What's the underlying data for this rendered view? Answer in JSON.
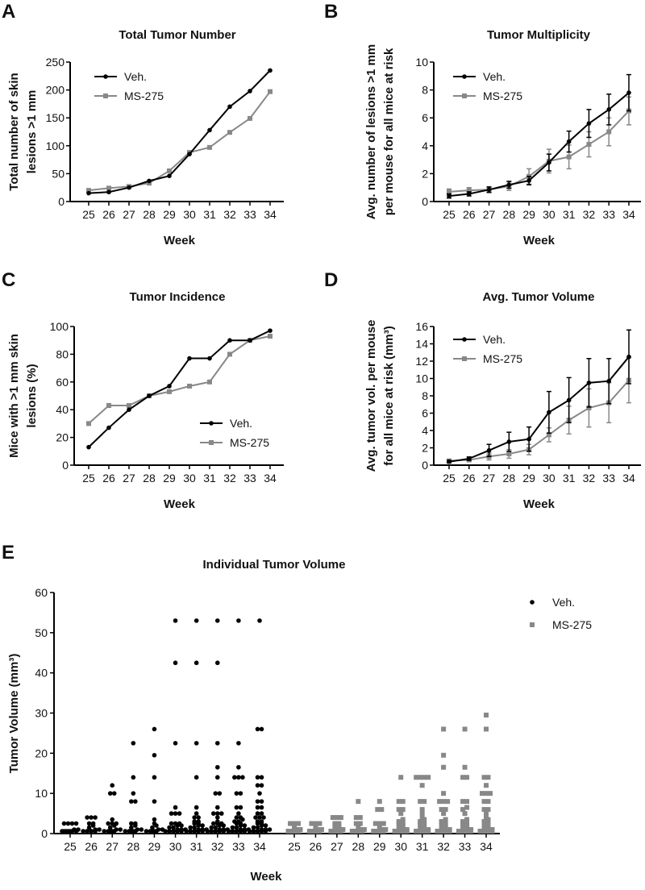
{
  "colors": {
    "veh": "#000000",
    "ms": "#888888"
  },
  "legend": {
    "veh": "Veh.",
    "ms": "MS-275"
  },
  "chart_data": [
    {
      "panel": "A",
      "type": "line",
      "title": "Total Tumor Number",
      "xlabel": "Week",
      "ylabel": [
        "Total number of skin",
        "lesions >1 mm"
      ],
      "categories": [
        25,
        26,
        27,
        28,
        29,
        30,
        31,
        32,
        33,
        34
      ],
      "ylim": [
        0,
        250
      ],
      "yticks": [
        0,
        50,
        100,
        150,
        200,
        250
      ],
      "legend_position": "top-left",
      "series": [
        {
          "name": "Veh.",
          "values": [
            15,
            17,
            25,
            37,
            46,
            85,
            128,
            170,
            198,
            235
          ]
        },
        {
          "name": "MS-275",
          "values": [
            20,
            24,
            27,
            33,
            55,
            88,
            97,
            124,
            149,
            197
          ]
        }
      ]
    },
    {
      "panel": "B",
      "type": "line",
      "title": "Tumor Multiplicity",
      "xlabel": "Week",
      "ylabel": [
        "Avg. number of lesions >1 mm",
        "per mouse for all mice at risk"
      ],
      "categories": [
        25,
        26,
        27,
        28,
        29,
        30,
        31,
        32,
        33,
        34
      ],
      "ylim": [
        0,
        10
      ],
      "yticks": [
        0,
        2,
        4,
        6,
        8,
        10
      ],
      "legend_position": "top-left",
      "series": [
        {
          "name": "Veh.",
          "values": [
            0.4,
            0.55,
            0.85,
            1.2,
            1.5,
            2.8,
            4.3,
            5.6,
            6.6,
            7.8
          ],
          "errors": [
            0.15,
            0.15,
            0.2,
            0.25,
            0.3,
            0.6,
            0.75,
            1.0,
            1.1,
            1.3
          ]
        },
        {
          "name": "MS-275",
          "values": [
            0.7,
            0.8,
            0.85,
            1.1,
            1.8,
            2.9,
            3.2,
            4.1,
            5.0,
            6.5
          ],
          "errors": [
            0.2,
            0.2,
            0.2,
            0.3,
            0.55,
            0.85,
            0.85,
            0.9,
            1.0,
            1.0
          ]
        }
      ]
    },
    {
      "panel": "C",
      "type": "line",
      "title": "Tumor Incidence",
      "xlabel": "Week",
      "ylabel": [
        "Mice with >1 mm skin",
        "lesions (%)"
      ],
      "categories": [
        25,
        26,
        27,
        28,
        29,
        30,
        31,
        32,
        33,
        34
      ],
      "ylim": [
        0,
        100
      ],
      "yticks": [
        0,
        20,
        40,
        60,
        80,
        100
      ],
      "legend_position": "bottom-right",
      "series": [
        {
          "name": "Veh.",
          "values": [
            13,
            27,
            40,
            50,
            57,
            77,
            77,
            90,
            90,
            97
          ]
        },
        {
          "name": "MS-275",
          "values": [
            30,
            43,
            43,
            50,
            53,
            57,
            60,
            80,
            90,
            93
          ]
        }
      ]
    },
    {
      "panel": "D",
      "type": "line",
      "title": "Avg. Tumor Volume",
      "xlabel": "Week",
      "ylabel": [
        "Avg. tumor vol. per mouse",
        "for all mice at risk  (mm³)"
      ],
      "categories": [
        25,
        26,
        27,
        28,
        29,
        30,
        31,
        32,
        33,
        34
      ],
      "ylim": [
        0,
        16
      ],
      "yticks": [
        0,
        2,
        4,
        6,
        8,
        10,
        12,
        14,
        16
      ],
      "legend_position": "top-left",
      "series": [
        {
          "name": "Veh.",
          "values": [
            0.4,
            0.75,
            1.7,
            2.7,
            3.0,
            6.1,
            7.5,
            9.5,
            9.7,
            12.5
          ],
          "errors": [
            0.15,
            0.2,
            0.7,
            1.1,
            1.4,
            2.4,
            2.6,
            2.8,
            2.6,
            3.1
          ]
        },
        {
          "name": "MS-275",
          "values": [
            0.5,
            0.6,
            1.0,
            1.3,
            1.8,
            3.5,
            5.2,
            6.6,
            7.2,
            9.8
          ],
          "errors": [
            0.1,
            0.15,
            0.4,
            0.5,
            0.6,
            0.8,
            1.6,
            2.2,
            2.3,
            2.6
          ]
        }
      ]
    },
    {
      "panel": "E",
      "type": "scatter",
      "title": "Individual Tumor Volume",
      "xlabel": "Week",
      "ylabel": "Tumor Volume (mm³)",
      "categories": [
        25,
        26,
        27,
        28,
        29,
        30,
        31,
        32,
        33,
        34
      ],
      "ylim": [
        0,
        60
      ],
      "yticks": [
        0,
        10,
        20,
        30,
        40,
        50,
        60
      ],
      "legend_position": "top-right",
      "series": [
        {
          "name": "Veh.",
          "groups": [
            [
              0.2,
              0.2,
              0.2,
              0.2,
              0.5,
              0.5,
              0.5,
              1,
              1,
              2.5,
              2.5,
              2.5,
              2.5
            ],
            [
              0.2,
              0.2,
              0.2,
              0.5,
              0.5,
              0.5,
              1,
              1,
              1.5,
              2,
              2.5,
              2.5,
              4,
              4,
              4
            ],
            [
              0.2,
              0.2,
              0.3,
              0.5,
              0.5,
              1,
              1,
              1.5,
              2,
              2.5,
              2.5,
              2.5,
              3.5,
              10,
              10,
              12
            ],
            [
              0.2,
              0.2,
              0.3,
              0.5,
              0.5,
              1,
              1,
              1.5,
              2,
              2.5,
              2.5,
              8,
              8,
              10,
              14,
              22.5
            ],
            [
              0.2,
              0.2,
              0.3,
              0.5,
              0.5,
              1,
              1,
              1.5,
              2,
              2.5,
              3.5,
              8,
              14,
              19.5,
              26
            ],
            [
              0.2,
              0.2,
              0.2,
              0.2,
              0.5,
              0.5,
              0.5,
              1,
              1,
              1,
              1.5,
              1.5,
              2,
              2,
              2.5,
              2.5,
              2.5,
              5,
              5,
              5,
              6.5,
              22.5,
              42.5,
              53
            ],
            [
              0.2,
              0.2,
              0.2,
              0.2,
              0.5,
              0.5,
              0.5,
              1,
              1,
              1,
              1.5,
              1.5,
              2,
              2,
              2.5,
              2.5,
              3,
              3,
              4,
              4,
              5,
              6.5,
              14,
              22.5,
              42.5,
              53
            ],
            [
              0.2,
              0.2,
              0.2,
              0.2,
              0.5,
              0.5,
              0.5,
              1,
              1,
              1,
              1.5,
              1.5,
              2,
              2,
              2.5,
              2.5,
              2.5,
              3,
              4,
              5,
              5,
              5,
              6.5,
              10,
              10,
              14,
              16.5,
              22.5,
              42.5,
              53
            ],
            [
              0.2,
              0.2,
              0.2,
              0.2,
              0.5,
              0.5,
              0.5,
              1,
              1,
              1,
              1.5,
              1.5,
              2,
              2,
              2.5,
              2.5,
              3,
              3,
              3.5,
              4,
              4,
              5,
              6.5,
              6.5,
              10,
              10,
              14,
              14,
              14,
              16.5,
              22.5,
              53
            ],
            [
              0.2,
              0.2,
              0.2,
              0.2,
              0.5,
              0.5,
              0.5,
              1,
              1,
              1,
              1.5,
              1.5,
              2,
              2,
              2.5,
              2.5,
              3,
              3,
              4,
              4,
              4,
              5,
              5,
              6.5,
              6.5,
              8,
              8,
              10,
              12,
              12,
              14,
              14,
              26,
              26,
              53
            ]
          ]
        },
        {
          "name": "MS-275",
          "groups": [
            [
              0.2,
              0.2,
              0.2,
              0.5,
              0.5,
              1,
              1,
              1.5,
              2.5,
              2.5,
              2.5
            ],
            [
              0.2,
              0.2,
              0.2,
              0.5,
              0.5,
              1,
              1,
              1.5,
              2.5,
              2.5,
              2.5
            ],
            [
              0.2,
              0.2,
              0.2,
              0.5,
              0.5,
              1,
              1,
              1.5,
              2,
              2.5,
              2.5,
              4,
              4,
              4
            ],
            [
              0.2,
              0.2,
              0.2,
              0.5,
              0.5,
              1,
              1,
              1.5,
              2.5,
              2.5,
              4,
              4,
              8
            ],
            [
              0.2,
              0.2,
              0.2,
              0.5,
              0.5,
              1,
              1,
              1.5,
              2.5,
              2.5,
              2.5,
              6,
              6,
              8
            ],
            [
              0.2,
              0.2,
              0.2,
              0.2,
              0.5,
              0.5,
              1,
              1,
              1.5,
              2,
              2.5,
              2.5,
              3,
              3.5,
              5,
              6,
              6,
              8,
              8,
              14
            ],
            [
              0.2,
              0.2,
              0.2,
              0.2,
              0.5,
              0.5,
              1,
              1,
              1.5,
              2,
              2.5,
              2.5,
              3,
              3.5,
              4,
              5,
              6,
              8,
              8,
              12,
              14,
              14,
              14,
              14
            ],
            [
              0.2,
              0.2,
              0.2,
              0.2,
              0.5,
              0.5,
              1,
              1,
              1.5,
              2,
              2.5,
              2.5,
              3,
              3.5,
              5,
              6,
              6,
              8,
              8,
              8,
              10,
              16.5,
              19.5,
              26
            ],
            [
              0.2,
              0.2,
              0.2,
              0.2,
              0.5,
              0.5,
              1,
              1,
              1.5,
              2,
              2.5,
              2.5,
              3,
              3.5,
              5,
              6,
              6.5,
              8,
              8,
              14,
              14,
              16.5,
              26
            ],
            [
              0.2,
              0.2,
              0.2,
              0.2,
              0.5,
              0.5,
              1,
              1,
              1.5,
              2,
              2.5,
              2.5,
              3,
              3.5,
              4,
              5,
              6,
              6,
              8,
              8,
              10,
              10,
              10,
              12,
              14,
              14,
              29.5,
              26
            ]
          ]
        }
      ]
    }
  ]
}
